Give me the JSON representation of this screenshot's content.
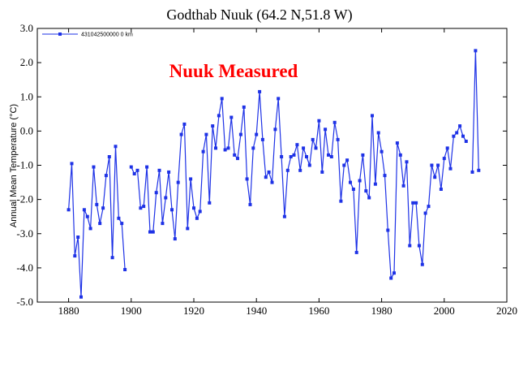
{
  "chart_data": {
    "type": "line",
    "title": "Godthab Nuuk (64.2 N,51.8 W)",
    "annotation": "Nuuk Measured",
    "ylabel": "Annual Mean Temperature (°C)",
    "xlabel": "",
    "xlim": [
      1870,
      2020
    ],
    "ylim": [
      -5.0,
      3.0
    ],
    "x_ticks": [
      1880,
      1900,
      1920,
      1940,
      1960,
      1980,
      2000,
      2020
    ],
    "y_ticks": [
      3.0,
      2.0,
      1.0,
      0.0,
      -1.0,
      -2.0,
      -3.0,
      -4.0,
      -5.0
    ],
    "y_tick_labels": [
      "3.0",
      "2.0",
      "1.0",
      "0.0",
      "-1.0",
      "-2.0",
      "-3.0",
      "-4.0",
      "-5.0"
    ],
    "x_tick_labels": [
      "1880",
      "1900",
      "1920",
      "1940",
      "1960",
      "1980",
      "2000",
      "2020"
    ],
    "grid": false,
    "legend_position": "top-left",
    "series": [
      {
        "name": "431042500000  0 km",
        "color": "#1e32e6",
        "segments": [
          [
            [
              1880,
              -2.3
            ],
            [
              1881,
              -0.95
            ],
            [
              1882,
              -3.65
            ],
            [
              1883,
              -3.1
            ],
            [
              1884,
              -4.85
            ],
            [
              1885,
              -2.3
            ],
            [
              1886,
              -2.5
            ],
            [
              1887,
              -2.85
            ],
            [
              1888,
              -1.05
            ],
            [
              1889,
              -2.15
            ],
            [
              1890,
              -2.7
            ],
            [
              1891,
              -2.25
            ],
            [
              1892,
              -1.3
            ],
            [
              1893,
              -0.75
            ],
            [
              1894,
              -3.7
            ],
            [
              1895,
              -0.45
            ],
            [
              1896,
              -2.55
            ],
            [
              1897,
              -2.7
            ],
            [
              1898,
              -4.05
            ]
          ],
          [
            [
              1900,
              -1.05
            ],
            [
              1901,
              -1.25
            ],
            [
              1902,
              -1.15
            ],
            [
              1903,
              -2.25
            ],
            [
              1904,
              -2.2
            ],
            [
              1905,
              -1.05
            ],
            [
              1906,
              -2.95
            ],
            [
              1907,
              -2.95
            ],
            [
              1908,
              -1.8
            ],
            [
              1909,
              -1.15
            ],
            [
              1910,
              -2.7
            ],
            [
              1911,
              -1.95
            ],
            [
              1912,
              -1.2
            ],
            [
              1913,
              -2.3
            ],
            [
              1914,
              -3.15
            ],
            [
              1915,
              -1.5
            ],
            [
              1916,
              -0.1
            ],
            [
              1917,
              0.2
            ],
            [
              1918,
              -2.85
            ],
            [
              1919,
              -1.4
            ],
            [
              1920,
              -2.25
            ],
            [
              1921,
              -2.55
            ],
            [
              1922,
              -2.35
            ],
            [
              1923,
              -0.6
            ],
            [
              1924,
              -0.1
            ],
            [
              1925,
              -2.1
            ],
            [
              1926,
              0.15
            ],
            [
              1927,
              -0.5
            ],
            [
              1928,
              0.45
            ],
            [
              1929,
              0.95
            ],
            [
              1930,
              -0.55
            ],
            [
              1931,
              -0.5
            ],
            [
              1932,
              0.4
            ],
            [
              1933,
              -0.7
            ],
            [
              1934,
              -0.8
            ],
            [
              1935,
              -0.1
            ],
            [
              1936,
              0.7
            ],
            [
              1937,
              -1.4
            ],
            [
              1938,
              -2.15
            ],
            [
              1939,
              -0.5
            ],
            [
              1940,
              -0.1
            ],
            [
              1941,
              1.15
            ],
            [
              1942,
              -0.25
            ],
            [
              1943,
              -1.35
            ],
            [
              1944,
              -1.2
            ],
            [
              1945,
              -1.5
            ],
            [
              1946,
              0.05
            ],
            [
              1947,
              0.95
            ],
            [
              1948,
              -0.75
            ],
            [
              1949,
              -2.5
            ],
            [
              1950,
              -1.15
            ],
            [
              1951,
              -0.75
            ],
            [
              1952,
              -0.7
            ],
            [
              1953,
              -0.4
            ],
            [
              1954,
              -1.15
            ],
            [
              1955,
              -0.5
            ],
            [
              1956,
              -0.75
            ],
            [
              1957,
              -1.0
            ],
            [
              1958,
              -0.25
            ],
            [
              1959,
              -0.5
            ],
            [
              1960,
              0.3
            ],
            [
              1961,
              -1.2
            ],
            [
              1962,
              0.05
            ],
            [
              1963,
              -0.7
            ],
            [
              1964,
              -0.75
            ],
            [
              1965,
              0.25
            ],
            [
              1966,
              -0.25
            ],
            [
              1967,
              -2.05
            ],
            [
              1968,
              -1.0
            ],
            [
              1969,
              -0.85
            ],
            [
              1970,
              -1.5
            ],
            [
              1971,
              -1.7
            ],
            [
              1972,
              -3.55
            ],
            [
              1973,
              -1.45
            ],
            [
              1974,
              -0.7
            ],
            [
              1975,
              -1.75
            ],
            [
              1976,
              -1.95
            ],
            [
              1977,
              0.45
            ],
            [
              1978,
              -1.55
            ],
            [
              1979,
              -0.05
            ],
            [
              1980,
              -0.6
            ],
            [
              1981,
              -1.3
            ],
            [
              1982,
              -2.9
            ],
            [
              1983,
              -4.3
            ],
            [
              1984,
              -4.15
            ],
            [
              1985,
              -0.35
            ],
            [
              1986,
              -0.7
            ],
            [
              1987,
              -1.6
            ],
            [
              1988,
              -0.9
            ],
            [
              1989,
              -3.35
            ],
            [
              1990,
              -2.1
            ],
            [
              1991,
              -2.1
            ],
            [
              1992,
              -3.35
            ],
            [
              1993,
              -3.9
            ],
            [
              1994,
              -2.4
            ],
            [
              1995,
              -2.2
            ],
            [
              1996,
              -1.0
            ],
            [
              1997,
              -1.35
            ],
            [
              1998,
              -1.0
            ],
            [
              1999,
              -1.7
            ],
            [
              2000,
              -0.8
            ],
            [
              2001,
              -0.5
            ],
            [
              2002,
              -1.1
            ],
            [
              2003,
              -0.15
            ],
            [
              2004,
              -0.05
            ],
            [
              2005,
              0.15
            ],
            [
              2006,
              -0.15
            ],
            [
              2007,
              -0.3
            ]
          ],
          [
            [
              2009,
              -1.2
            ],
            [
              2010,
              2.35
            ],
            [
              2011,
              -1.15
            ]
          ]
        ]
      }
    ]
  }
}
